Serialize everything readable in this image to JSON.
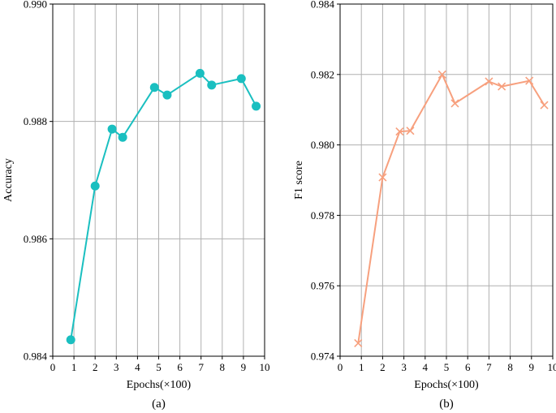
{
  "chart_data": [
    {
      "type": "line",
      "caption": "(a)",
      "xlabel": "Epochs(×100)",
      "ylabel": "Accuracy",
      "xlim": [
        0,
        10
      ],
      "ylim": [
        0.984,
        0.99
      ],
      "xticks": [
        "0",
        "1",
        "2",
        "3",
        "4",
        "5",
        "6",
        "7",
        "8",
        "9",
        "10"
      ],
      "yticks": [
        "0.984",
        "0.986",
        "0.988",
        "0.990"
      ],
      "ytick_values": [
        0.984,
        0.986,
        0.988,
        0.99
      ],
      "grid": true,
      "marker": "circle",
      "color": "#1ABFC0",
      "series": [
        {
          "x": [
            0.85,
            2.0,
            2.8,
            3.3,
            4.8,
            5.4,
            6.95,
            7.5,
            8.9,
            9.6
          ],
          "y": [
            0.98428,
            0.9869,
            0.98787,
            0.98773,
            0.98858,
            0.98845,
            0.98882,
            0.98862,
            0.98873,
            0.98826
          ]
        }
      ]
    },
    {
      "type": "line",
      "caption": "(b)",
      "xlabel": "Epochs(×100)",
      "ylabel": "F1 score",
      "xlim": [
        0,
        10
      ],
      "ylim": [
        0.974,
        0.984
      ],
      "xticks": [
        "0",
        "1",
        "2",
        "3",
        "4",
        "5",
        "6",
        "7",
        "8",
        "9",
        "10"
      ],
      "yticks": [
        "0.974",
        "0.976",
        "0.978",
        "0.980",
        "0.982",
        "0.984"
      ],
      "ytick_values": [
        0.974,
        0.976,
        0.978,
        0.98,
        0.982,
        0.984
      ],
      "grid": true,
      "marker": "x",
      "color": "#F7A07E",
      "series": [
        {
          "x": [
            0.85,
            2.0,
            2.8,
            3.3,
            4.8,
            5.4,
            7.0,
            7.6,
            8.9,
            9.6
          ],
          "y": [
            0.97437,
            0.97908,
            0.98038,
            0.9804,
            0.982,
            0.98118,
            0.9818,
            0.98166,
            0.98182,
            0.98113
          ]
        }
      ]
    }
  ]
}
